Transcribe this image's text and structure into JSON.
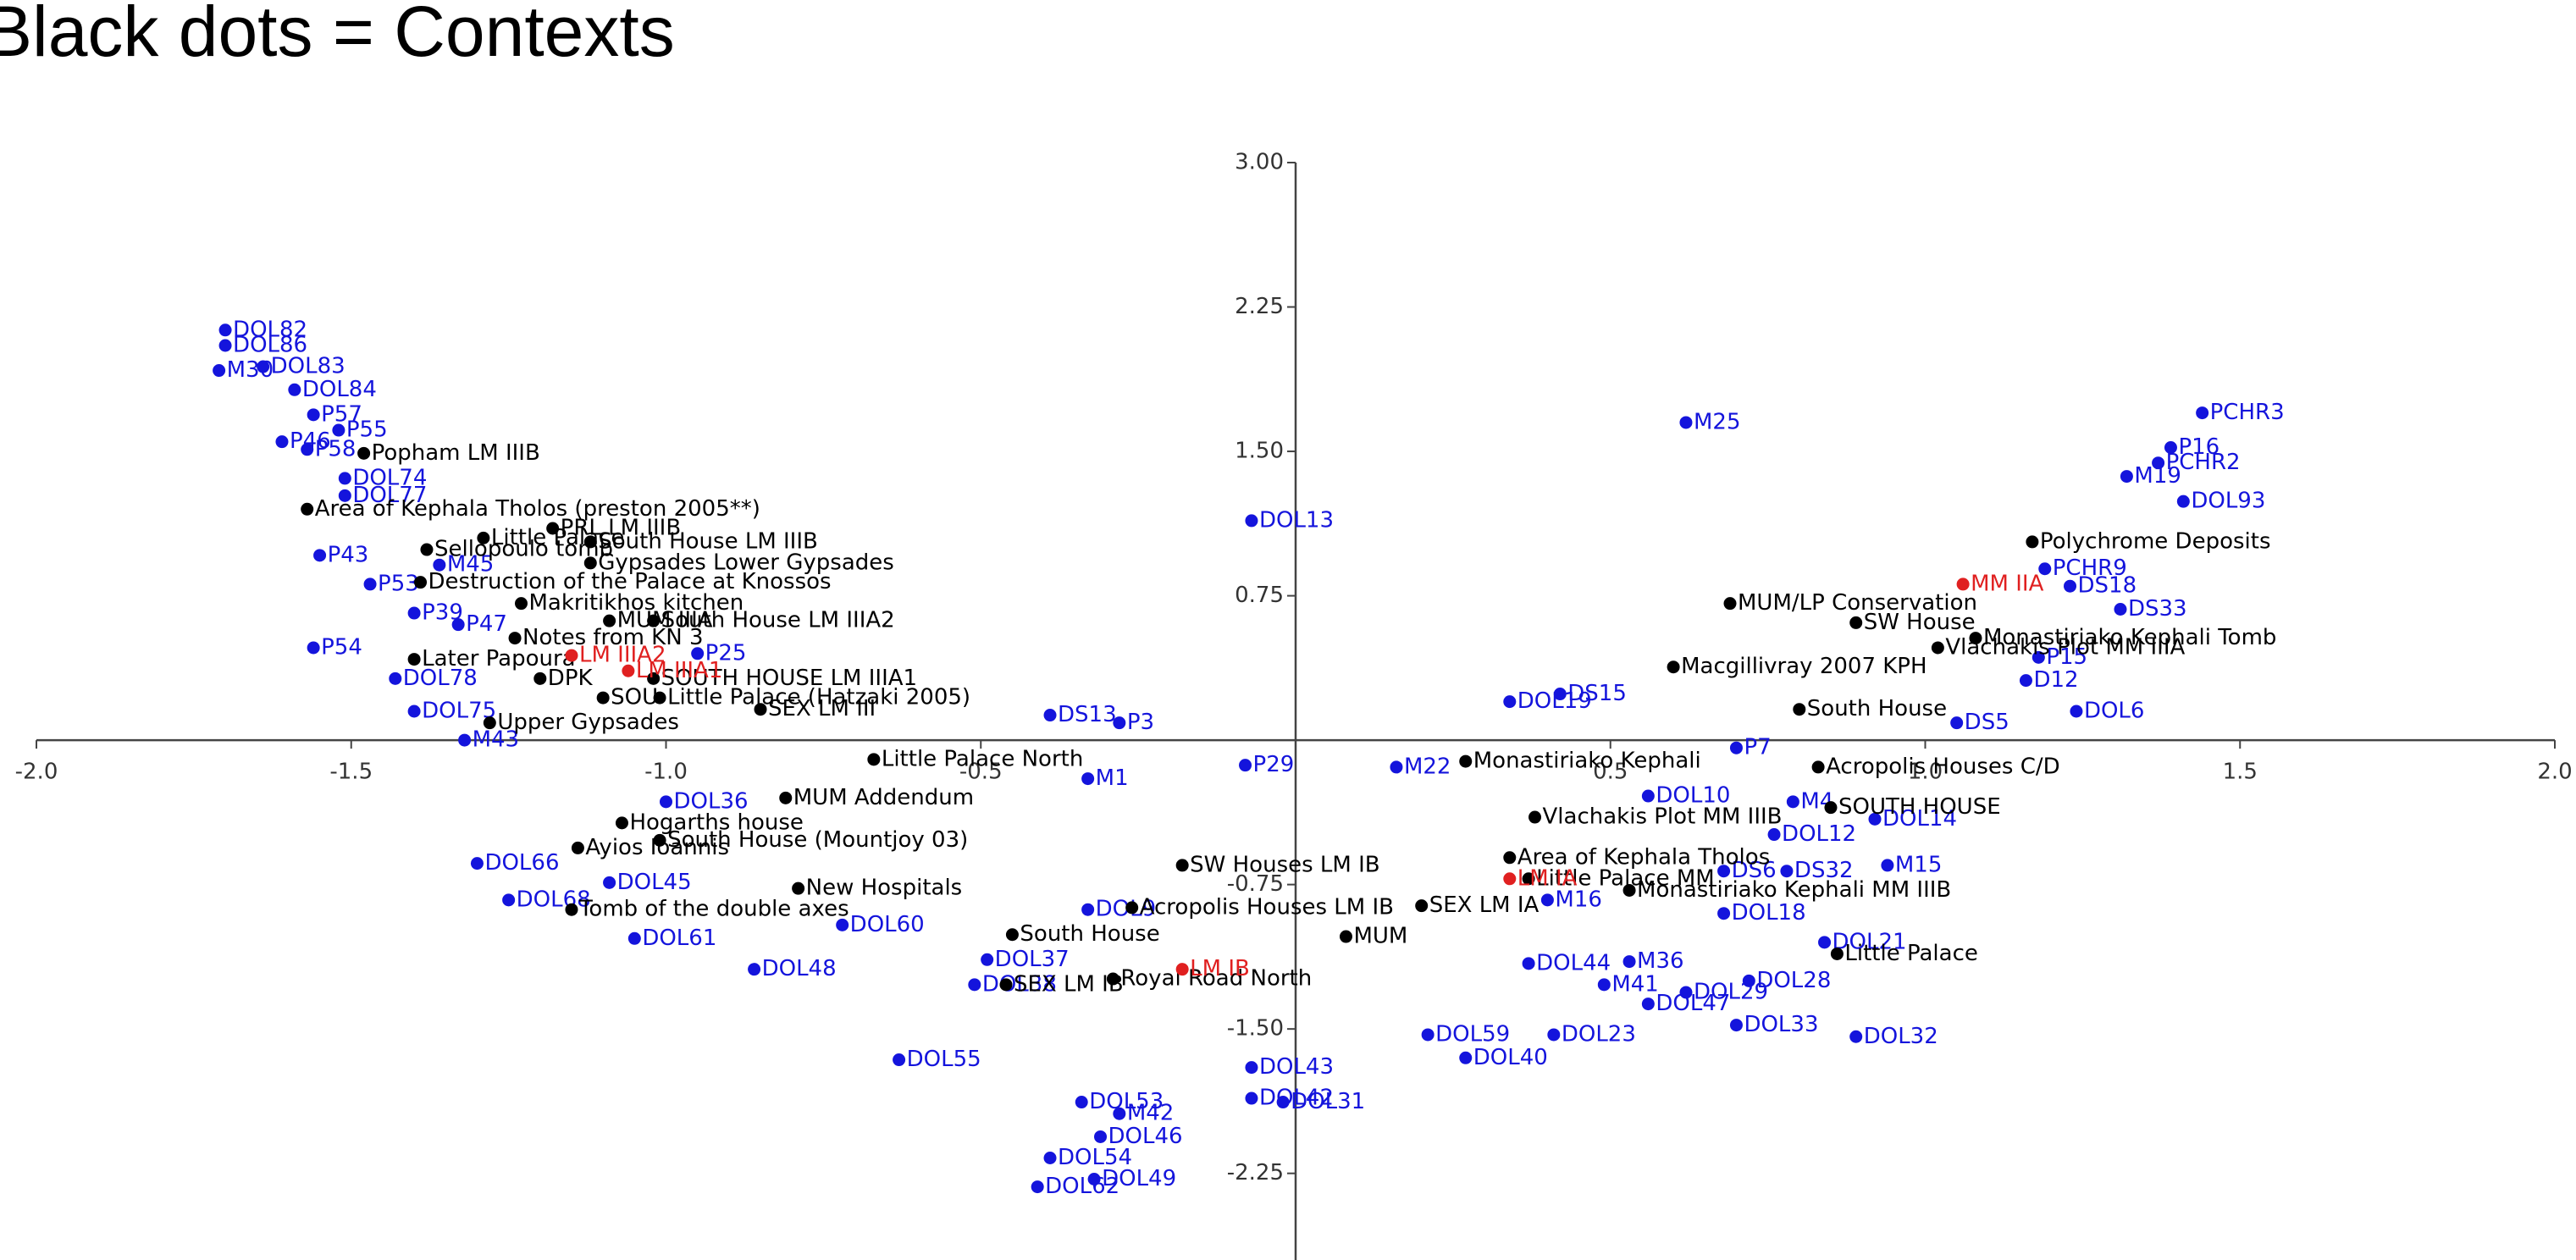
{
  "chart_data": {
    "type": "scatter",
    "title": "Black dots = Contexts",
    "xlim": [
      -2.0,
      2.0
    ],
    "ylim": [
      -2.7,
      3.0
    ],
    "xticks": [
      {
        "value": -2.0,
        "label": "-2.0"
      },
      {
        "value": -1.5,
        "label": "-1.5"
      },
      {
        "value": -1.0,
        "label": "-1.0"
      },
      {
        "value": -0.5,
        "label": "-0.5"
      },
      0.5,
      {
        "value": 1.0,
        "label": "1.0"
      },
      1.5,
      {
        "value": 2.0,
        "label": "2.0"
      }
    ],
    "yticks": [
      {
        "value": 3.0,
        "label": "3.00"
      },
      2.25,
      {
        "value": 1.5,
        "label": "1.50"
      },
      0.75,
      -0.75,
      {
        "value": -1.5,
        "label": "-1.50"
      },
      -2.25
    ],
    "series": [
      {
        "color": "#1414dc",
        "labels": [
          "DOL82",
          "DOL86",
          "DOL83",
          "M30",
          "DOL84",
          "P57",
          "P55",
          "P46",
          "P58",
          "DOL74",
          "DOL77",
          "P43",
          "M45",
          "P53",
          "P39",
          "P47",
          "P54",
          "DOL78",
          "DOL75",
          "M43",
          "P25",
          "DOL13",
          "M25",
          "DS13",
          "P3",
          "P29",
          "M22",
          "M1",
          "DOL36",
          "DOL66",
          "DOL45",
          "DOL68",
          "DOL61",
          "DOL48",
          "DOL60",
          "DOL55",
          "DOL37",
          "DOL38",
          "DOL53",
          "M42",
          "DOL46",
          "DOL54",
          "DOL62",
          "DOL49",
          "DOL43",
          "DOL42",
          "DOL31",
          "DOL9",
          "DOL44",
          "M36",
          "M41",
          "DOL47",
          "DOL23",
          "DOL40",
          "DOL59",
          "DOL33",
          "DOL32",
          "DOL29",
          "DOL28",
          "DOL21",
          "M16",
          "DS6",
          "DS32",
          "M15",
          "DOL12",
          "DOL10",
          "M4",
          "DOL14",
          "DOL18",
          "P7",
          "DOL19",
          "DS15",
          "DOL6",
          "D12",
          "P15",
          "DS5",
          "DS18",
          "DS33",
          "PCHR9",
          "PCHR2",
          "M19",
          "DOL93",
          "P16",
          "PCHR3"
        ],
        "x": [
          -1.7,
          -1.7,
          -1.64,
          -1.71,
          -1.59,
          -1.56,
          -1.52,
          -1.61,
          -1.57,
          -1.51,
          -1.51,
          -1.55,
          -1.36,
          -1.47,
          -1.4,
          -1.33,
          -1.56,
          -1.43,
          -1.4,
          -1.32,
          -0.95,
          -0.07,
          0.62,
          -0.39,
          -0.28,
          -0.08,
          0.16,
          -0.33,
          -1.0,
          -1.3,
          -1.09,
          -1.25,
          -1.05,
          -0.86,
          -0.72,
          -0.63,
          -0.49,
          -0.51,
          -0.34,
          -0.28,
          -0.31,
          -0.39,
          -0.41,
          -0.32,
          -0.07,
          -0.07,
          -0.02,
          -0.33,
          0.37,
          0.53,
          0.49,
          0.56,
          0.41,
          0.27,
          0.21,
          0.7,
          0.89,
          0.62,
          0.72,
          0.84,
          0.4,
          0.68,
          0.78,
          0.94,
          0.76,
          0.56,
          0.79,
          0.92,
          0.68,
          0.7,
          0.34,
          0.42,
          1.24,
          1.16,
          1.18,
          1.05,
          1.23,
          1.31,
          1.19,
          1.37,
          1.32,
          1.41,
          1.39,
          1.44
        ],
        "y": [
          2.13,
          2.05,
          1.94,
          1.92,
          1.82,
          1.69,
          1.61,
          1.55,
          1.51,
          1.36,
          1.27,
          0.96,
          0.91,
          0.81,
          0.66,
          0.6,
          0.48,
          0.32,
          0.15,
          0.0,
          0.45,
          1.14,
          1.65,
          0.13,
          0.09,
          -0.13,
          -0.14,
          -0.2,
          -0.32,
          -0.64,
          -0.74,
          -0.83,
          -1.03,
          -1.19,
          -0.96,
          -1.66,
          -1.14,
          -1.27,
          -1.88,
          -1.94,
          -2.06,
          -2.17,
          -2.32,
          -2.28,
          -1.7,
          -1.86,
          -1.88,
          -0.88,
          -1.16,
          -1.15,
          -1.27,
          -1.37,
          -1.53,
          -1.65,
          -1.53,
          -1.48,
          -1.54,
          -1.31,
          -1.25,
          -1.05,
          -0.83,
          -0.68,
          -0.68,
          -0.65,
          -0.49,
          -0.29,
          -0.32,
          -0.41,
          -0.9,
          -0.04,
          0.2,
          0.24,
          0.15,
          0.31,
          0.43,
          0.09,
          0.8,
          0.68,
          0.89,
          1.44,
          1.37,
          1.24,
          1.52,
          1.7
        ]
      },
      {
        "color": "#000000",
        "labels": [
          "Popham LM IIIB",
          "Area of Kephala Tholos (preston 2005**)",
          "PRL LM IIIB",
          "South House LM IIIB",
          "Little Palace",
          "Sellopoulo tomb",
          "Gypsades Lower Gypsades",
          "Destruction of the Palace at Knossos",
          "Makritikhos kitchen",
          "South House LM IIIA2",
          "MUM IIIA",
          "Notes from KN 3",
          "Later Papoura",
          "DPK",
          "SOUTH HOUSE LM IIIA1",
          "SOU",
          "Little Palace (Hatzaki 2005)",
          "SEX LM III",
          "Upper Gypsades",
          "Little Palace North",
          "MUM Addendum",
          "Hogarths house",
          "South House (Mountjoy 03)",
          "Ayios Ioannis",
          "New Hospitals",
          "Tomb of the double axes",
          "SW Houses LM IB",
          "Acropolis Houses LM IB",
          "South House",
          "SEX LM IB",
          "Royal Road North",
          "MUM",
          "SEX LM IA",
          "Monastiriako Kephali",
          "Vlachakis Plot MM IIIB",
          "Area of Kephala Tholos",
          "Little Palace MM",
          "Monastiriako Kephali MM IIIB",
          "MUM/LP Conservation",
          "SW House",
          "Macgillivray 2007 KPH",
          "South House",
          "Acropolis Houses C/D",
          "SOUTH HOUSE",
          "Little Palace",
          "Monastiriako Kephali Tomb",
          "Polychrome Deposits",
          "Vlachakis Plot MM IIIA"
        ],
        "x": [
          -1.48,
          -1.57,
          -1.18,
          -1.12,
          -1.29,
          -1.38,
          -1.12,
          -1.39,
          -1.23,
          -1.02,
          -1.09,
          -1.24,
          -1.4,
          -1.2,
          -1.02,
          -1.1,
          -1.01,
          -0.85,
          -1.28,
          -0.67,
          -0.81,
          -1.07,
          -1.01,
          -1.14,
          -0.79,
          -1.15,
          -0.18,
          -0.26,
          -0.45,
          -0.46,
          -0.29,
          0.08,
          0.2,
          0.27,
          0.38,
          0.34,
          0.37,
          0.53,
          0.69,
          0.89,
          0.6,
          0.8,
          0.83,
          0.85,
          0.86,
          1.08,
          1.17,
          1.02
        ],
        "y": [
          1.49,
          1.2,
          1.1,
          1.03,
          1.05,
          0.99,
          0.92,
          0.82,
          0.71,
          0.62,
          0.62,
          0.53,
          0.42,
          0.32,
          0.32,
          0.22,
          0.22,
          0.16,
          0.09,
          -0.1,
          -0.3,
          -0.43,
          -0.52,
          -0.56,
          -0.77,
          -0.88,
          -0.65,
          -0.87,
          -1.01,
          -1.27,
          -1.24,
          -1.02,
          -0.86,
          -0.11,
          -0.4,
          -0.61,
          -0.72,
          -0.78,
          0.71,
          0.61,
          0.38,
          0.16,
          -0.14,
          -0.35,
          -1.11,
          0.53,
          1.03,
          0.48
        ]
      },
      {
        "color": "#e02020",
        "labels": [
          "LM IIIA2",
          "LM IIIA1",
          "MM IIA",
          "LM IB",
          "LM IA"
        ],
        "x": [
          -1.15,
          -1.06,
          1.06,
          -0.18,
          0.34
        ],
        "y": [
          0.44,
          0.36,
          0.81,
          -1.19,
          -0.72
        ]
      }
    ]
  }
}
